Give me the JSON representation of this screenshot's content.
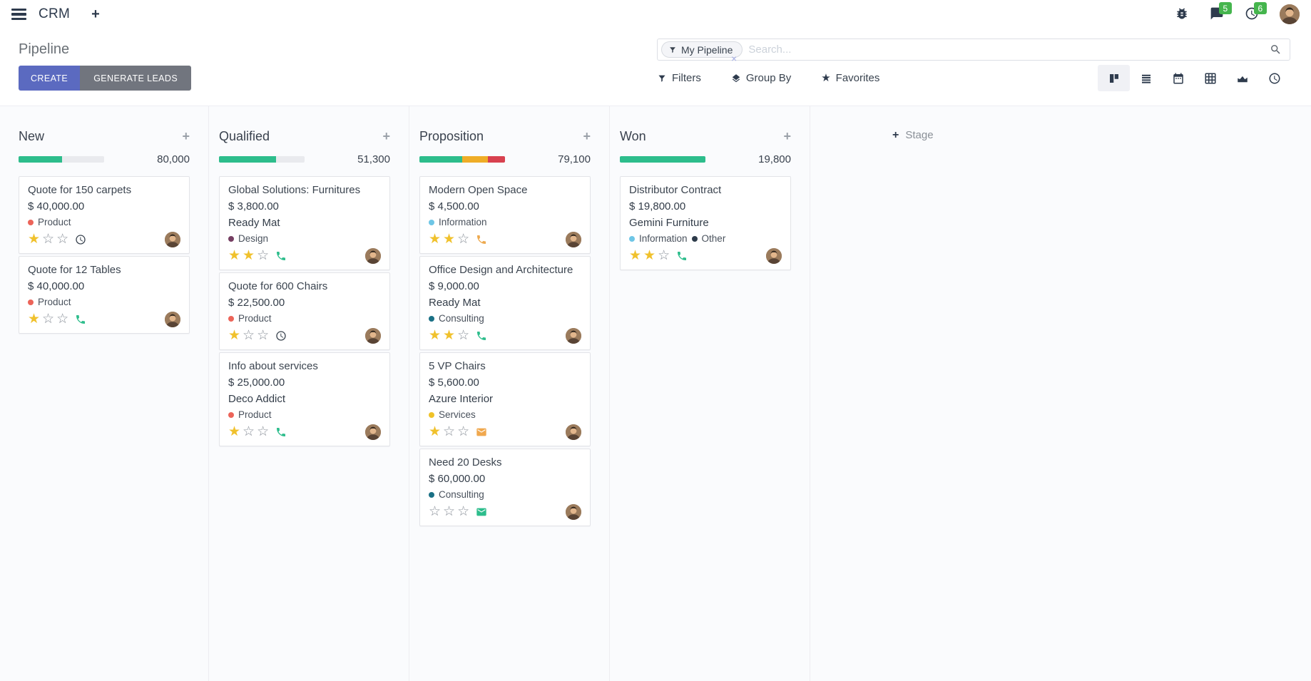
{
  "nav": {
    "app_name": "CRM",
    "message_badge": "5",
    "activity_badge": "6"
  },
  "control_panel": {
    "title": "Pipeline",
    "buttons": {
      "create": "CREATE",
      "generate_leads": "GENERATE LEADS"
    },
    "search": {
      "facet_label": "My Pipeline",
      "placeholder": "Search...",
      "remove_facet": "×"
    },
    "filter_menus": {
      "filters": "Filters",
      "group_by": "Group By",
      "favorites": "Favorites"
    }
  },
  "kanban": {
    "add_stage_label": "Stage",
    "add_card_label": "+",
    "colors": {
      "success": "#2dbd8c",
      "warning": "#efad27",
      "danger": "#d8414f"
    },
    "columns": [
      {
        "name": "New",
        "total": "80,000",
        "progress": [
          {
            "color": "#2dbd8c",
            "pct": 51
          }
        ],
        "cards": [
          {
            "title": "Quote for 150 carpets",
            "amount": "$ 40,000.00",
            "tags": [
              {
                "label": "Product",
                "color": "#ec6459"
              }
            ],
            "stars": 1,
            "activity": {
              "icon": "clock",
              "color": "#39434f"
            }
          },
          {
            "title": "Quote for 12 Tables",
            "amount": "$ 40,000.00",
            "tags": [
              {
                "label": "Product",
                "color": "#ec6459"
              }
            ],
            "stars": 1,
            "activity": {
              "icon": "phone",
              "color": "#2dbd8c"
            }
          }
        ]
      },
      {
        "name": "Qualified",
        "total": "51,300",
        "progress": [
          {
            "color": "#2dbd8c",
            "pct": 67
          }
        ],
        "cards": [
          {
            "title": "Global Solutions: Furnitures",
            "amount": "$ 3,800.00",
            "partner": "Ready Mat",
            "tags": [
              {
                "label": "Design",
                "color": "#753e62"
              }
            ],
            "stars": 2,
            "activity": {
              "icon": "phone",
              "color": "#2dbd8c"
            }
          },
          {
            "title": "Quote for 600 Chairs",
            "amount": "$ 22,500.00",
            "tags": [
              {
                "label": "Product",
                "color": "#ec6459"
              }
            ],
            "stars": 1,
            "activity": {
              "icon": "clock",
              "color": "#39434f"
            }
          },
          {
            "title": "Info about services",
            "amount": "$ 25,000.00",
            "partner": "Deco Addict",
            "tags": [
              {
                "label": "Product",
                "color": "#ec6459"
              }
            ],
            "stars": 1,
            "activity": {
              "icon": "phone",
              "color": "#2dbd8c"
            }
          }
        ]
      },
      {
        "name": "Proposition",
        "total": "79,100",
        "progress": [
          {
            "color": "#2dbd8c",
            "pct": 50
          },
          {
            "color": "#efad27",
            "pct": 30
          },
          {
            "color": "#d8414f",
            "pct": 20
          }
        ],
        "cards": [
          {
            "title": "Modern Open Space",
            "amount": "$ 4,500.00",
            "tags": [
              {
                "label": "Information",
                "color": "#6ec6e6"
              }
            ],
            "stars": 2,
            "activity": {
              "icon": "phone",
              "color": "#eda94f"
            }
          },
          {
            "title": "Office Design and Architecture",
            "amount": "$ 9,000.00",
            "partner": "Ready Mat",
            "tags": [
              {
                "label": "Consulting",
                "color": "#1a7085"
              }
            ],
            "stars": 2,
            "activity": {
              "icon": "phone",
              "color": "#2dbd8c"
            }
          },
          {
            "title": "5 VP Chairs",
            "amount": "$ 5,600.00",
            "partner": "Azure Interior",
            "tags": [
              {
                "label": "Services",
                "color": "#efc228"
              }
            ],
            "stars": 1,
            "activity": {
              "icon": "envelope",
              "color": "#f0a84e"
            }
          },
          {
            "title": "Need 20 Desks",
            "amount": "$ 60,000.00",
            "tags": [
              {
                "label": "Consulting",
                "color": "#1a7085"
              }
            ],
            "stars": 0,
            "activity": {
              "icon": "envelope",
              "color": "#2dbd8c"
            }
          }
        ]
      },
      {
        "name": "Won",
        "total": "19,800",
        "progress": [
          {
            "color": "#2dbd8c",
            "pct": 100
          }
        ],
        "cards": [
          {
            "title": "Distributor Contract",
            "amount": "$ 19,800.00",
            "partner": "Gemini Furniture",
            "tags": [
              {
                "label": "Information",
                "color": "#6ec6e6"
              },
              {
                "label": "Other",
                "color": "#2d3b4a"
              }
            ],
            "stars": 2,
            "activity": {
              "icon": "phone",
              "color": "#2dbd8c"
            }
          }
        ]
      }
    ]
  }
}
